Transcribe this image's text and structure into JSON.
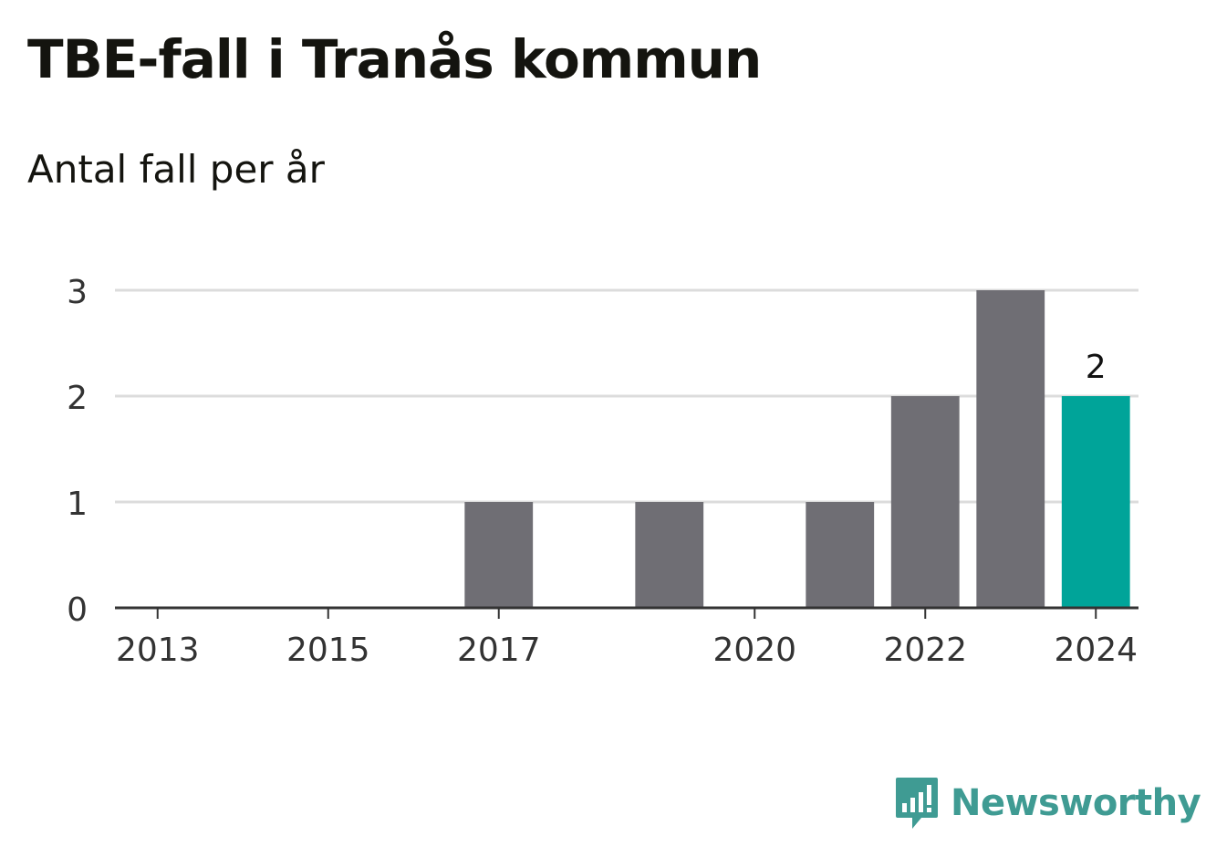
{
  "title": "TBE-fall i Tranås kommun",
  "subtitle": "Antal fall per år",
  "brand": {
    "name": "Newsworthy",
    "color": "#3f9b93",
    "icon": "newsworthy-logo-icon"
  },
  "colors": {
    "bar": "#6f6e74",
    "highlight": "#00a499",
    "grid": "#dcdcdc",
    "axis": "#333333"
  },
  "chart_data": {
    "type": "bar",
    "x": [
      2013,
      2014,
      2015,
      2016,
      2017,
      2018,
      2019,
      2020,
      2021,
      2022,
      2023,
      2024
    ],
    "values": [
      0,
      0,
      0,
      0,
      1,
      0,
      1,
      0,
      1,
      2,
      3,
      2
    ],
    "x_tick_labels": [
      "2013",
      "2015",
      "2017",
      "2020",
      "2022",
      "2024"
    ],
    "y_ticks": [
      0,
      1,
      2,
      3
    ],
    "ylim": [
      0,
      3
    ],
    "highlight": {
      "x": 2024,
      "label": "2"
    },
    "grid": true,
    "legend": "none"
  }
}
